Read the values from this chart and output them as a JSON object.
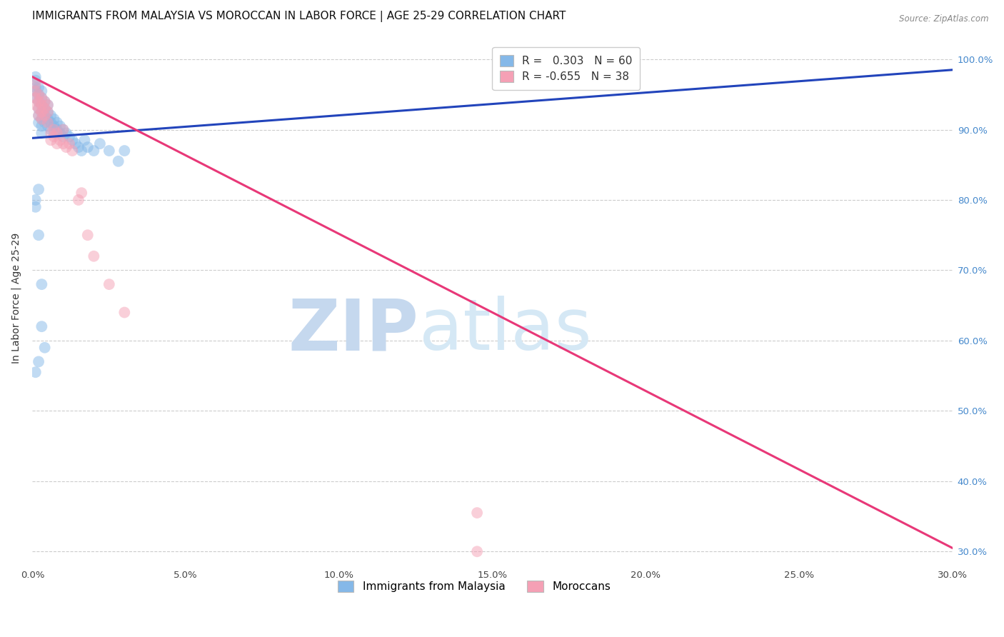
{
  "title": "IMMIGRANTS FROM MALAYSIA VS MOROCCAN IN LABOR FORCE | AGE 25-29 CORRELATION CHART",
  "source": "Source: ZipAtlas.com",
  "ylabel": "In Labor Force | Age 25-29",
  "xlim": [
    0.0,
    0.3
  ],
  "ylim": [
    0.28,
    1.04
  ],
  "xticks": [
    0.0,
    0.05,
    0.1,
    0.15,
    0.2,
    0.25,
    0.3
  ],
  "yticks": [
    0.3,
    0.4,
    0.5,
    0.6,
    0.7,
    0.8,
    0.9,
    1.0
  ],
  "ytick_labels_right": [
    "30.0%",
    "40.0%",
    "50.0%",
    "60.0%",
    "70.0%",
    "80.0%",
    "90.0%",
    "100.0%"
  ],
  "xtick_labels": [
    "0.0%",
    "5.0%",
    "10.0%",
    "15.0%",
    "20.0%",
    "25.0%",
    "30.0%"
  ],
  "malaysia_color": "#85B8E8",
  "moroccan_color": "#F5A0B5",
  "malaysia_line_color": "#2244BB",
  "moroccan_line_color": "#E83878",
  "R_malaysia": 0.303,
  "N_malaysia": 60,
  "R_moroccan": -0.655,
  "N_moroccan": 38,
  "malaysia_x": [
    0.001,
    0.001,
    0.001,
    0.001,
    0.001,
    0.002,
    0.002,
    0.002,
    0.002,
    0.002,
    0.002,
    0.003,
    0.003,
    0.003,
    0.003,
    0.003,
    0.003,
    0.003,
    0.004,
    0.004,
    0.004,
    0.004,
    0.005,
    0.005,
    0.005,
    0.005,
    0.006,
    0.006,
    0.006,
    0.007,
    0.007,
    0.007,
    0.008,
    0.008,
    0.009,
    0.009,
    0.01,
    0.01,
    0.011,
    0.012,
    0.013,
    0.014,
    0.015,
    0.016,
    0.017,
    0.018,
    0.02,
    0.022,
    0.025,
    0.028,
    0.03,
    0.001,
    0.001,
    0.002,
    0.002,
    0.003,
    0.003,
    0.004,
    0.002,
    0.001
  ],
  "malaysia_y": [
    0.955,
    0.945,
    0.96,
    0.97,
    0.975,
    0.96,
    0.95,
    0.94,
    0.93,
    0.92,
    0.91,
    0.955,
    0.945,
    0.935,
    0.925,
    0.915,
    0.905,
    0.895,
    0.94,
    0.93,
    0.92,
    0.91,
    0.935,
    0.925,
    0.915,
    0.905,
    0.92,
    0.91,
    0.9,
    0.915,
    0.905,
    0.895,
    0.91,
    0.9,
    0.905,
    0.895,
    0.9,
    0.89,
    0.895,
    0.89,
    0.885,
    0.88,
    0.875,
    0.87,
    0.885,
    0.875,
    0.87,
    0.88,
    0.87,
    0.855,
    0.87,
    0.8,
    0.79,
    0.815,
    0.75,
    0.68,
    0.62,
    0.59,
    0.57,
    0.555
  ],
  "moroccan_x": [
    0.001,
    0.001,
    0.001,
    0.001,
    0.002,
    0.002,
    0.002,
    0.002,
    0.003,
    0.003,
    0.003,
    0.003,
    0.004,
    0.004,
    0.004,
    0.005,
    0.005,
    0.005,
    0.006,
    0.006,
    0.007,
    0.007,
    0.008,
    0.008,
    0.009,
    0.01,
    0.01,
    0.011,
    0.012,
    0.013,
    0.015,
    0.016,
    0.018,
    0.02,
    0.025,
    0.03,
    0.145,
    0.145
  ],
  "moroccan_y": [
    0.965,
    0.955,
    0.945,
    0.935,
    0.95,
    0.94,
    0.93,
    0.92,
    0.945,
    0.935,
    0.925,
    0.915,
    0.94,
    0.93,
    0.92,
    0.935,
    0.925,
    0.91,
    0.895,
    0.885,
    0.9,
    0.89,
    0.895,
    0.88,
    0.885,
    0.9,
    0.88,
    0.875,
    0.88,
    0.87,
    0.8,
    0.81,
    0.75,
    0.72,
    0.68,
    0.64,
    0.355,
    0.3
  ],
  "malaysia_trendline_x": [
    0.0,
    0.3
  ],
  "malaysia_trendline_y": [
    0.888,
    0.985
  ],
  "moroccan_trendline_x": [
    0.0,
    0.3
  ],
  "moroccan_trendline_y": [
    0.975,
    0.305
  ],
  "watermark_line1": "ZIP",
  "watermark_line2": "atlas",
  "watermark_color": "#D8E8F5",
  "background_color": "#FFFFFF",
  "grid_color": "#CCCCCC",
  "title_fontsize": 11,
  "axis_label_fontsize": 10,
  "tick_fontsize": 9.5,
  "marker_size": 130,
  "marker_alpha": 0.5
}
